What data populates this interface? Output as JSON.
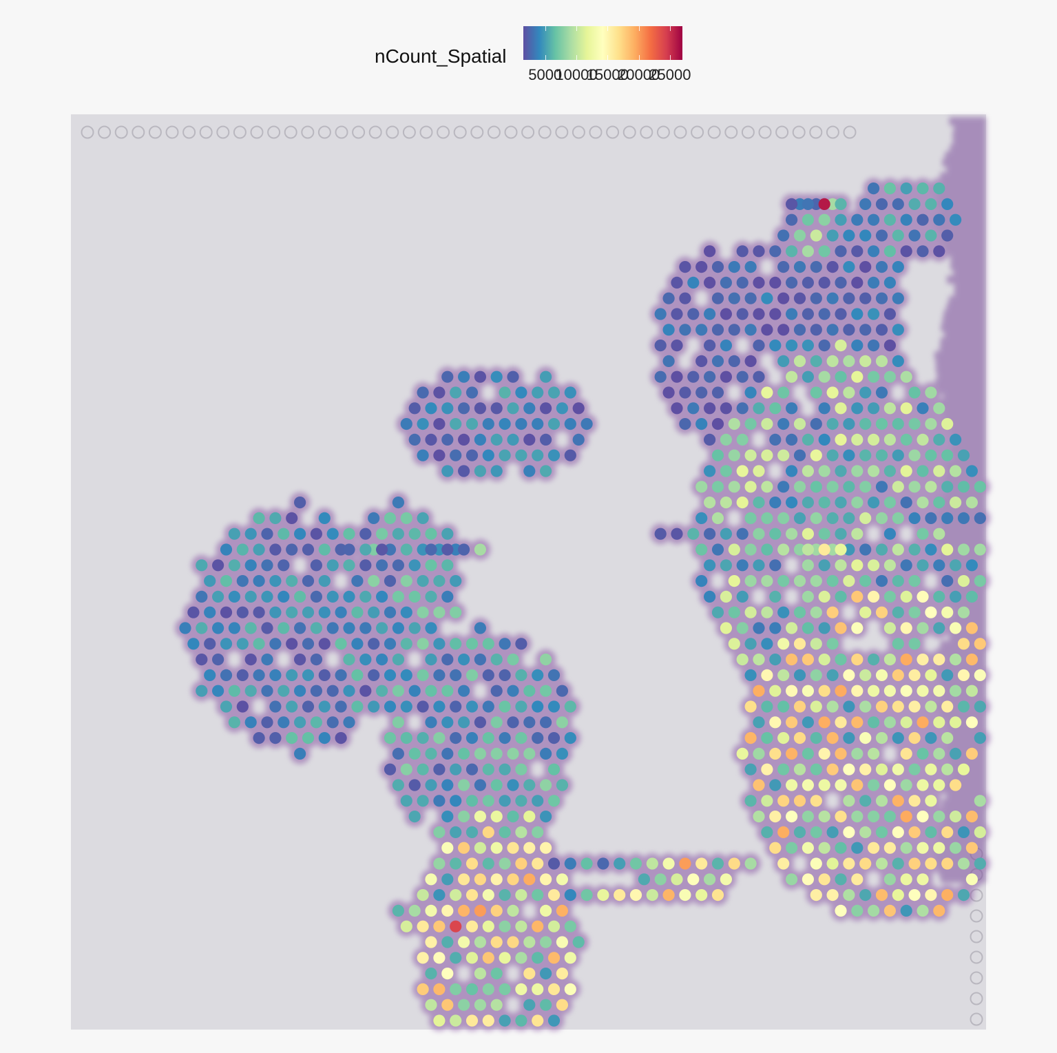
{
  "legend": {
    "title": "nCount_Spatial",
    "tick_labels": [
      "5000",
      "10000",
      "15000",
      "20000",
      "25000"
    ]
  },
  "colors": {
    "background": "#f7f7f7",
    "tissue_background": "#dcdbe0",
    "tissue_stain": "#8b5aa6",
    "spectral_ramp": [
      "#5e4fa2",
      "#3288bd",
      "#66c2a5",
      "#abdda4",
      "#e6f598",
      "#ffffbf",
      "#fee08b",
      "#fdae61",
      "#f46d43",
      "#d53e4f",
      "#9e0142"
    ]
  },
  "chart_data": {
    "type": "scatter",
    "title": "",
    "xlabel": "",
    "ylabel": "",
    "color_variable": "nCount_Spatial",
    "color_scale": "Spectral (reversed)",
    "color_range": [
      1500,
      27000
    ],
    "grid": false,
    "axes_visible": false,
    "legend_position": "top",
    "background_image": "H&E tissue section",
    "spots": [
      [
        88,
        3,
        26000
      ],
      [
        84,
        3,
        1800
      ],
      [
        85,
        3,
        3500
      ],
      [
        86,
        3,
        3200
      ],
      [
        87,
        3,
        2500
      ],
      [
        89,
        3,
        9000
      ],
      [
        90,
        3,
        6000
      ],
      [
        84,
        4,
        2600
      ],
      [
        86,
        4,
        7000
      ],
      [
        88,
        4,
        8000
      ],
      [
        90,
        4,
        5000
      ],
      [
        83,
        5,
        3000
      ],
      [
        85,
        5,
        8000
      ],
      [
        87,
        5,
        10500
      ],
      [
        89,
        5,
        5000
      ],
      [
        91,
        5,
        4000
      ],
      [
        78,
        6,
        2000
      ],
      [
        80,
        6,
        1800
      ],
      [
        82,
        6,
        2600
      ],
      [
        84,
        6,
        6000
      ],
      [
        86,
        6,
        9000
      ],
      [
        88,
        6,
        7000
      ],
      [
        68,
        24,
        2000
      ],
      [
        70,
        24,
        1800
      ],
      [
        72,
        24,
        6000
      ],
      [
        74,
        24,
        2600
      ],
      [
        76,
        24,
        5000
      ],
      [
        78,
        24,
        3000
      ],
      [
        80,
        24,
        8000
      ],
      [
        82,
        24,
        6500
      ],
      [
        84,
        24,
        9000
      ],
      [
        86,
        24,
        11500
      ],
      [
        88,
        24,
        7000
      ],
      [
        90,
        24,
        5500
      ],
      [
        92,
        24,
        10000
      ],
      [
        30,
        25,
        2500
      ],
      [
        32,
        25,
        5500
      ],
      [
        34,
        25,
        1800
      ],
      [
        40,
        25,
        2600
      ],
      [
        42,
        25,
        2000
      ],
      [
        44,
        25,
        2400
      ],
      [
        46,
        25,
        9000
      ],
      [
        86,
        25,
        10000
      ],
      [
        88,
        25,
        16000
      ],
      [
        90,
        25,
        12000
      ],
      [
        55,
        45,
        2000
      ],
      [
        57,
        45,
        3500
      ],
      [
        59,
        45,
        6500
      ],
      [
        61,
        45,
        2600
      ],
      [
        63,
        45,
        5000
      ],
      [
        65,
        45,
        7000
      ],
      [
        67,
        45,
        10000
      ],
      [
        69,
        45,
        13000
      ],
      [
        71,
        45,
        20000
      ],
      [
        73,
        45,
        16000
      ],
      [
        75,
        45,
        6000
      ],
      [
        77,
        45,
        17000
      ],
      [
        79,
        45,
        9000
      ],
      [
        66,
        46,
        5500
      ],
      [
        68,
        46,
        8000
      ],
      [
        70,
        46,
        11000
      ],
      [
        72,
        46,
        14000
      ],
      [
        74,
        46,
        9000
      ],
      [
        76,
        46,
        13000
      ],
      [
        57,
        47,
        4000
      ],
      [
        59,
        47,
        7000
      ],
      [
        61,
        47,
        12000
      ],
      [
        63,
        47,
        16000
      ],
      [
        65,
        47,
        15000
      ],
      [
        67,
        47,
        10500
      ],
      [
        69,
        47,
        19000
      ],
      [
        71,
        47,
        13500
      ],
      [
        73,
        47,
        12000
      ],
      [
        75,
        47,
        16500
      ],
      [
        36,
        48,
        6000
      ],
      [
        38,
        48,
        9000
      ],
      [
        40,
        48,
        13000
      ],
      [
        42,
        48,
        15000
      ],
      [
        44,
        48,
        19000
      ],
      [
        46,
        48,
        20000
      ],
      [
        48,
        48,
        17500
      ],
      [
        50,
        48,
        10000
      ],
      [
        37,
        49,
        11000
      ],
      [
        39,
        49,
        16000
      ],
      [
        41,
        49,
        18000
      ],
      [
        43,
        49,
        24000
      ],
      [
        45,
        49,
        16000
      ],
      [
        47,
        49,
        12000
      ],
      [
        49,
        49,
        8000
      ]
    ]
  }
}
